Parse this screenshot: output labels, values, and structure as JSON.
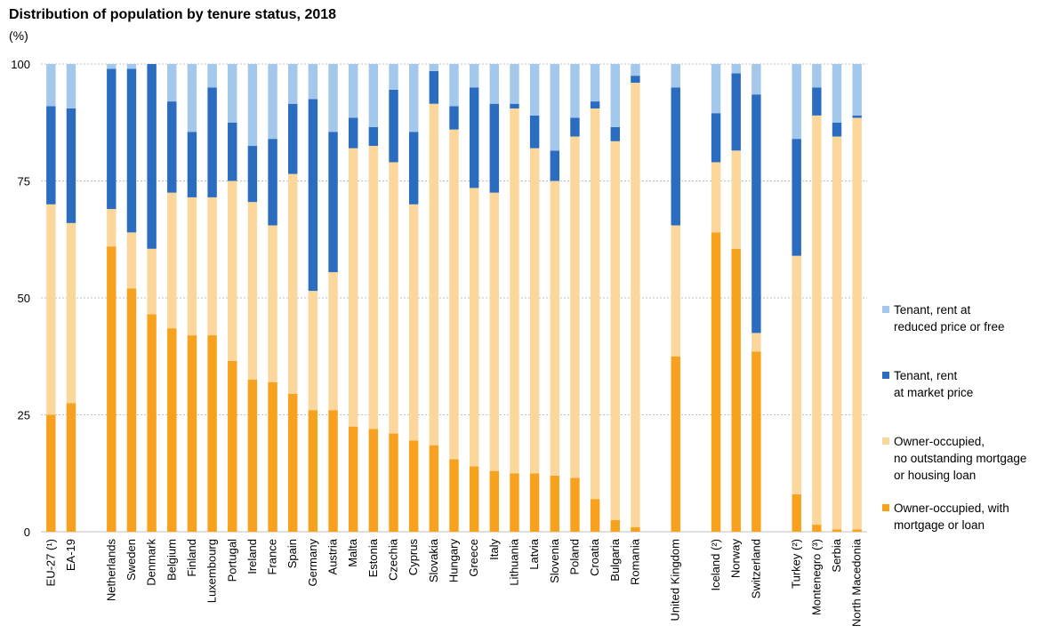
{
  "colors": {
    "tenant_reduced": "#a3c8ec",
    "tenant_market": "#2a6cc0",
    "owner_no_mortgage": "#fbd79c",
    "owner_mortgage": "#f7a11c",
    "grid": "#bfbfbf"
  },
  "chart_data": {
    "type": "bar",
    "stacked": true,
    "title": "Distribution of population by tenure status, 2018",
    "unit": "(%)",
    "ylim": [
      0,
      100
    ],
    "yticks": [
      0,
      25,
      50,
      75,
      100
    ],
    "grid": true,
    "legend_position": "right",
    "categories": [
      "EU-27 (¹)",
      "EA-19",
      "Netherlands",
      "Sweden",
      "Denmark",
      "Belgium",
      "Finland",
      "Luxembourg",
      "Portugal",
      "Ireland",
      "France",
      "Spain",
      "Germany",
      "Austria",
      "Malta",
      "Estonia",
      "Czechia",
      "Cyprus",
      "Slovakia",
      "Hungary",
      "Greece",
      "Italy",
      "Lithuania",
      "Latvia",
      "Slovenia",
      "Poland",
      "Croatia",
      "Bulgaria",
      "Romania",
      "United Kingdom",
      "Iceland (²)",
      "Norway",
      "Switzerland",
      "Turkey (²)",
      "Montenegro (³)",
      "Serbia",
      "North Macedonia"
    ],
    "groups": [
      2,
      27,
      1,
      3,
      4
    ],
    "series": [
      {
        "name": "Owner-occupied, with\nmortgage or loan",
        "color_key": "owner_mortgage",
        "values": [
          25,
          27.5,
          61,
          52,
          46.5,
          43.5,
          42,
          42,
          36.5,
          32.5,
          32,
          29.5,
          26,
          26,
          22.5,
          22,
          21,
          19.5,
          18.5,
          15.5,
          14,
          13,
          12.5,
          12.5,
          12,
          11.5,
          7,
          2.5,
          1,
          37.5,
          64,
          60.5,
          38.5,
          8,
          1.5,
          0.5,
          0.5
        ]
      },
      {
        "name": "Owner-occupied,\nno outstanding mortgage\nor housing loan",
        "color_key": "owner_no_mortgage",
        "values": [
          45,
          38.5,
          8,
          12,
          14,
          29,
          29.5,
          29.5,
          38.5,
          38,
          33.5,
          47,
          25.5,
          29.5,
          59.5,
          60.5,
          58,
          50.5,
          73,
          70.5,
          59.5,
          59.5,
          78,
          69.5,
          63,
          73,
          83.5,
          81,
          95,
          28,
          15,
          21,
          4,
          51,
          87.5,
          84,
          88
        ]
      },
      {
        "name": "Tenant, rent\nat market price",
        "color_key": "tenant_market",
        "values": [
          21,
          24.5,
          30,
          35,
          39.5,
          19.5,
          14,
          23.5,
          12.5,
          12,
          18.5,
          15,
          41,
          30,
          6.5,
          4,
          15.5,
          15.5,
          7,
          5,
          21.5,
          19,
          1,
          7,
          6.5,
          4,
          1.5,
          3,
          1.5,
          29.5,
          10.5,
          16.5,
          51,
          25,
          6,
          3,
          0.5
        ]
      },
      {
        "name": "Tenant, rent at\nreduced price or free",
        "color_key": "tenant_reduced",
        "values": [
          9,
          9.5,
          1,
          1,
          0,
          8,
          14.5,
          5,
          12.5,
          17.5,
          16,
          8.5,
          7.5,
          14.5,
          11.5,
          13.5,
          5.5,
          14.5,
          1.5,
          9,
          5,
          8.5,
          8.5,
          11,
          18.5,
          11.5,
          8,
          13.5,
          2.5,
          5,
          10.5,
          2,
          6.5,
          16,
          5,
          12.5,
          11
        ]
      }
    ]
  }
}
